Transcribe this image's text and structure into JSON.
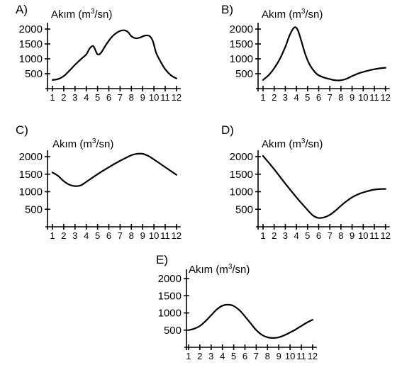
{
  "chart_data": [
    {
      "type": "line",
      "panel_label": "A)",
      "ylabel": "Akım (m³/sn)",
      "ylabel_main": "Akım (m",
      "ylabel_sup": "3",
      "ylabel_tail": "/sn)",
      "yticks": [
        "500",
        "1000",
        "1500",
        "2000"
      ],
      "ylim": [
        0,
        2000
      ],
      "categories": [
        "1",
        "2",
        "3",
        "4",
        "5",
        "6",
        "7",
        "8",
        "9",
        "10",
        "11",
        "12"
      ],
      "x": [
        1,
        1.5,
        2,
        2.5,
        3,
        3.5,
        4,
        4.3,
        4.6,
        4.8,
        5,
        5.3,
        5.8,
        6.3,
        6.8,
        7.3,
        7.7,
        8,
        8.4,
        8.8,
        9.2,
        9.6,
        9.9,
        10.2,
        10.6,
        11,
        11.5,
        12
      ],
      "y": [
        290,
        320,
        420,
        600,
        800,
        980,
        1150,
        1350,
        1430,
        1300,
        1150,
        1200,
        1500,
        1750,
        1900,
        1960,
        1900,
        1760,
        1690,
        1720,
        1780,
        1770,
        1600,
        1200,
        900,
        650,
        450,
        340
      ]
    },
    {
      "type": "line",
      "panel_label": "B)",
      "ylabel": "Akım (m³/sn)",
      "ylabel_main": "Akım (m",
      "ylabel_sup": "3",
      "ylabel_tail": "/sn)",
      "yticks": [
        "500",
        "1000",
        "1500",
        "2000"
      ],
      "ylim": [
        0,
        2000
      ],
      "categories": [
        "1",
        "2",
        "3",
        "4",
        "5",
        "6",
        "7",
        "8",
        "9",
        "10",
        "11",
        "12"
      ],
      "x": [
        1,
        1.5,
        2,
        2.5,
        3,
        3.4,
        3.8,
        4.1,
        4.4,
        4.8,
        5.2,
        5.8,
        6.4,
        7,
        7.5,
        8,
        8.5,
        9,
        9.5,
        10,
        10.5,
        11,
        11.5,
        12
      ],
      "y": [
        290,
        450,
        680,
        990,
        1400,
        1800,
        2050,
        1980,
        1650,
        1150,
        800,
        500,
        380,
        320,
        280,
        280,
        330,
        420,
        500,
        560,
        610,
        650,
        680,
        700
      ]
    },
    {
      "type": "line",
      "panel_label": "C)",
      "ylabel": "Akım (m³/sn)",
      "ylabel_main": "Akım (m",
      "ylabel_sup": "3",
      "ylabel_tail": "/sn)",
      "yticks": [
        "500",
        "1000",
        "1500",
        "2000"
      ],
      "ylim": [
        0,
        2000
      ],
      "categories": [
        "1",
        "2",
        "3",
        "4",
        "5",
        "6",
        "7",
        "8",
        "9",
        "10",
        "11",
        "12"
      ],
      "x": [
        1,
        1.5,
        2,
        2.5,
        3,
        3.5,
        4,
        5,
        6,
        7,
        8,
        8.5,
        9,
        9.5,
        10,
        11,
        12
      ],
      "y": [
        1550,
        1450,
        1300,
        1200,
        1160,
        1180,
        1280,
        1500,
        1700,
        1880,
        2040,
        2080,
        2080,
        2020,
        1920,
        1700,
        1480
      ]
    },
    {
      "type": "line",
      "panel_label": "D)",
      "ylabel": "Akım (m³/sn)",
      "ylabel_main": "Akım (m",
      "ylabel_sup": "3",
      "ylabel_tail": "/sn)",
      "yticks": [
        "500",
        "1000",
        "1500",
        "2000"
      ],
      "ylim": [
        0,
        2000
      ],
      "categories": [
        "1",
        "2",
        "3",
        "4",
        "5",
        "6",
        "7",
        "8",
        "9",
        "10",
        "11",
        "12"
      ],
      "x": [
        1,
        2,
        3,
        4,
        5,
        5.5,
        6,
        6.5,
        7,
        7.5,
        8,
        8.5,
        9,
        9.5,
        10,
        11,
        12
      ],
      "y": [
        2020,
        1640,
        1230,
        840,
        480,
        320,
        250,
        270,
        340,
        460,
        600,
        730,
        840,
        920,
        980,
        1060,
        1080
      ]
    },
    {
      "type": "line",
      "panel_label": "E)",
      "ylabel": "Akım (m³/sn)",
      "ylabel_main": "Akım (m",
      "ylabel_sup": "3",
      "ylabel_tail": "/sn)",
      "yticks": [
        "500",
        "1000",
        "1500",
        "2000"
      ],
      "ylim": [
        0,
        2000
      ],
      "categories": [
        "1",
        "2",
        "3",
        "4",
        "5",
        "6",
        "7",
        "8",
        "9",
        "10",
        "11",
        "12"
      ],
      "x": [
        1,
        1.5,
        2,
        2.5,
        3,
        3.5,
        4,
        4.5,
        5,
        5.5,
        6,
        6.5,
        7,
        7.5,
        8,
        8.5,
        9,
        9.5,
        10,
        10.5,
        11,
        11.5,
        12
      ],
      "y": [
        500,
        540,
        620,
        760,
        930,
        1100,
        1210,
        1240,
        1200,
        1080,
        900,
        700,
        500,
        360,
        290,
        270,
        290,
        350,
        430,
        520,
        620,
        720,
        800
      ]
    }
  ]
}
